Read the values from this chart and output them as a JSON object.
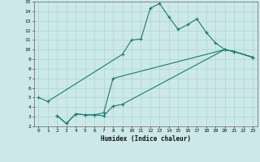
{
  "xlabel": "Humidex (Indice chaleur)",
  "xlim": [
    -0.5,
    23.5
  ],
  "ylim": [
    2,
    15
  ],
  "xticks": [
    0,
    1,
    2,
    3,
    4,
    5,
    6,
    7,
    8,
    9,
    10,
    11,
    12,
    13,
    14,
    15,
    16,
    17,
    18,
    19,
    20,
    21,
    22,
    23
  ],
  "yticks": [
    2,
    3,
    4,
    5,
    6,
    7,
    8,
    9,
    10,
    11,
    12,
    13,
    14,
    15
  ],
  "background_color": "#cde8e8",
  "grid_color": "#b0d8d8",
  "line_color": "#1a7a6e",
  "curves": [
    {
      "x": [
        0,
        1,
        9,
        10,
        11,
        12,
        13,
        14,
        15,
        16,
        17,
        18,
        19,
        20,
        21,
        23
      ],
      "y": [
        5.0,
        4.6,
        9.5,
        11.0,
        11.1,
        14.3,
        14.8,
        13.4,
        12.1,
        12.6,
        13.2,
        11.8,
        10.7,
        10.0,
        9.8,
        9.2
      ]
    },
    {
      "x": [
        2,
        3,
        4,
        5,
        6,
        7,
        8,
        9,
        20,
        21,
        23
      ],
      "y": [
        3.1,
        2.3,
        3.3,
        3.2,
        3.2,
        3.1,
        4.1,
        4.3,
        10.0,
        9.8,
        9.2
      ]
    },
    {
      "x": [
        2,
        3,
        4,
        5,
        6,
        7,
        8,
        20,
        21,
        23
      ],
      "y": [
        3.1,
        2.3,
        3.3,
        3.2,
        3.2,
        3.4,
        7.0,
        10.0,
        9.8,
        9.2
      ]
    }
  ]
}
